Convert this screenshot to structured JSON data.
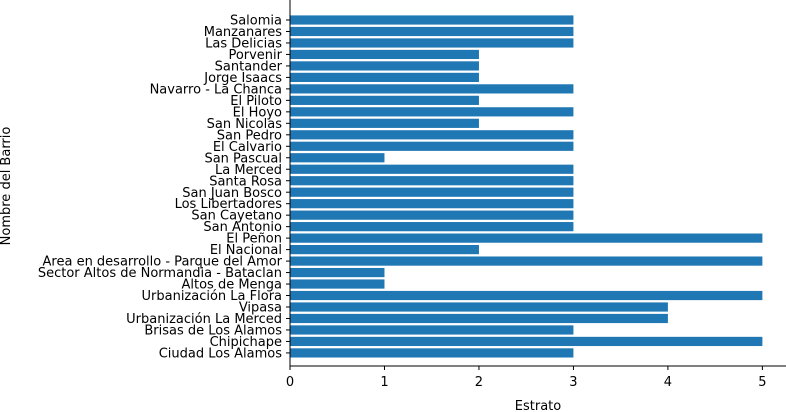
{
  "chart_data": {
    "type": "bar",
    "orientation": "horizontal",
    "title": "",
    "xlabel": "Estrato",
    "ylabel": "Nombre del Barrio",
    "xlim": [
      0,
      5.25
    ],
    "xticks": [
      0,
      1,
      2,
      3,
      4,
      5
    ],
    "grid": false,
    "bar_color": "#1f77b4",
    "categories": [
      "Salomia",
      "Manzanares",
      "Las Delicias",
      "Porvenir",
      "Santander",
      "Jorge Isaacs",
      "Navarro - La Chanca",
      "El Piloto",
      "El Hoyo",
      "San Nicolas",
      "San Pedro",
      "El Calvario",
      "San Pascual",
      "La Merced",
      "Santa Rosa",
      "San Juan Bosco",
      "Los Libertadores",
      "San Cayetano",
      "San Antonio",
      "El Peñon",
      "El Nacional",
      "Area en desarrollo - Parque del Amor",
      "Sector Altos de Normandia - Bataclan",
      "Altos de Menga",
      "Urbanización La Flora",
      "Vipasa",
      "Urbanización La Merced",
      "Brisas de Los Alamos",
      "Chipichape",
      "Ciudad Los Alamos"
    ],
    "values": [
      3,
      3,
      3,
      2,
      2,
      2,
      3,
      2,
      3,
      2,
      3,
      3,
      1,
      3,
      3,
      3,
      3,
      3,
      3,
      5,
      2,
      5,
      1,
      1,
      5,
      4,
      4,
      3,
      5,
      3
    ]
  }
}
